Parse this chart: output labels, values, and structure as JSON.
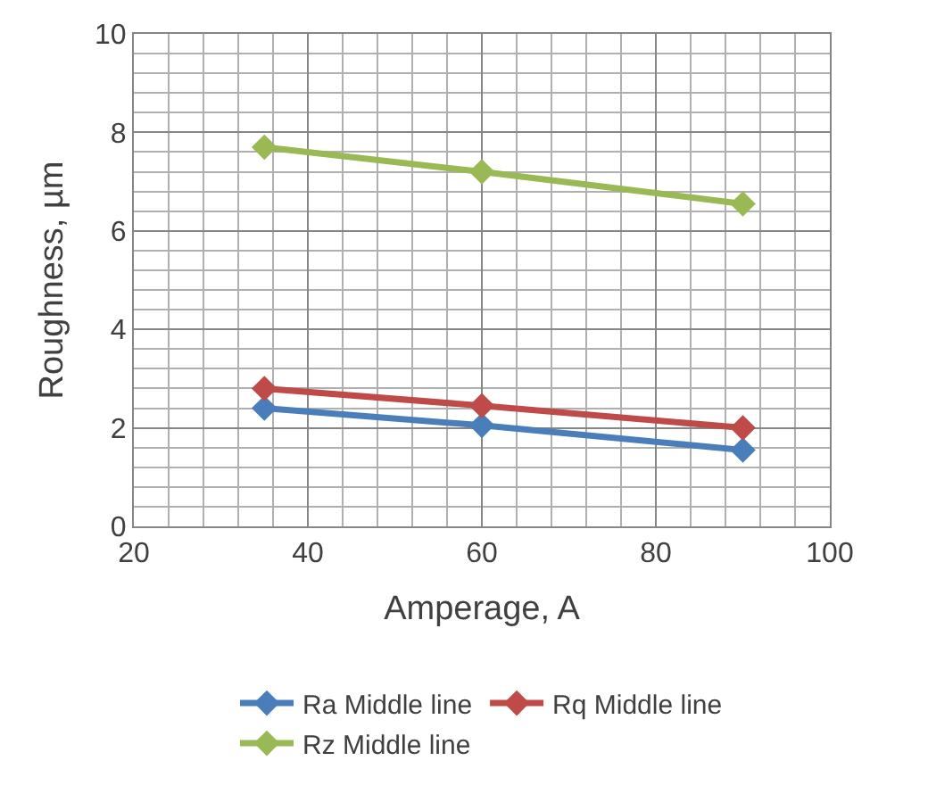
{
  "chart_data": {
    "type": "line",
    "xlabel": "Amperage, A",
    "ylabel": "Roughness, µm",
    "x": [
      35,
      60,
      90
    ],
    "series": [
      {
        "name": "Ra Middle line",
        "color": "#4a7ebb",
        "values": [
          2.4,
          2.05,
          1.55
        ]
      },
      {
        "name": "Rq Middle line",
        "color": "#be4b48",
        "values": [
          2.8,
          2.45,
          2.0
        ]
      },
      {
        "name": "Rz Middle line",
        "color": "#98b954",
        "values": [
          7.7,
          7.2,
          6.55
        ]
      }
    ],
    "xlim": [
      20,
      100
    ],
    "xticks": [
      20,
      40,
      60,
      80,
      100
    ],
    "ylim": [
      0,
      10
    ],
    "yticks": [
      0,
      2,
      4,
      6,
      8,
      10
    ],
    "grid": true,
    "legend": "bottom",
    "marker": "diamond",
    "line_style": "solid"
  }
}
